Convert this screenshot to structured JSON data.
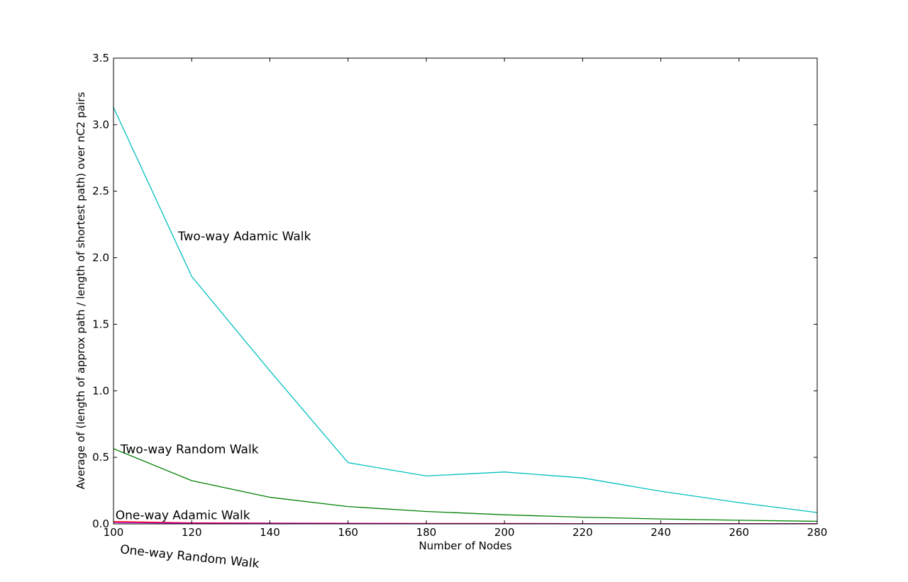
{
  "chart_data": {
    "type": "line",
    "title": "",
    "xlabel": "Number of Nodes",
    "ylabel": "Average of (length of approx path / length of shortest path) over nC2 pairs",
    "xlim": [
      100,
      280
    ],
    "ylim": [
      0,
      3.5
    ],
    "xticks": [
      "100",
      "120",
      "140",
      "160",
      "180",
      "200",
      "220",
      "240",
      "260",
      "280"
    ],
    "yticks": [
      "0.0",
      "0.5",
      "1.0",
      "1.5",
      "2.0",
      "2.5",
      "3.0",
      "3.5"
    ],
    "grid": false,
    "x": [
      100,
      120,
      140,
      160,
      180,
      200,
      220,
      240,
      260,
      280
    ],
    "series": [
      {
        "name": "Two-way Adamic Walk",
        "color": "#00bfbf",
        "values": [
          3.13,
          1.86,
          1.15,
          0.46,
          0.36,
          0.39,
          0.345,
          0.245,
          0.16,
          0.085
        ]
      },
      {
        "name": "Two-way Random Walk",
        "color": "#008000",
        "values": [
          0.565,
          0.325,
          0.2,
          0.13,
          0.093,
          0.068,
          0.05,
          0.037,
          0.027,
          0.019
        ]
      },
      {
        "name": "One-way Adamic Walk",
        "color": "#ff0000",
        "values": [
          0.018,
          0.008,
          0.006,
          0.004,
          0.003,
          0.003,
          0.002,
          0.002,
          0.002,
          0.002
        ]
      },
      {
        "name": "One-way Random Walk",
        "color": "#bf00bf",
        "values": [
          0.01,
          0.005,
          0.004,
          0.003,
          0.002,
          0.002,
          0.001,
          0.001,
          0.001,
          0.001
        ]
      }
    ],
    "annotations": [
      {
        "text": "Two-way Adamic Walk",
        "x": 116.5,
        "y": 2.13,
        "rotation": 0
      },
      {
        "text": "Two-way Random Walk",
        "x": 101.8,
        "y": 0.53,
        "rotation": 0
      },
      {
        "text": "One-way Adamic Walk",
        "x": 100.5,
        "y": 0.035,
        "rotation": 0
      },
      {
        "text": "One-way Random Walk",
        "x": 101.6,
        "y": -0.22,
        "rotation": 6
      }
    ]
  }
}
